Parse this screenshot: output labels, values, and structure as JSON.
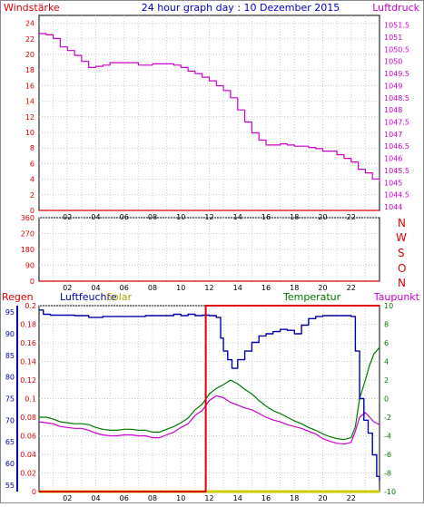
{
  "title": "24 hour graph day : 10 Dezember 2015",
  "colors": {
    "wind": "#dd0000",
    "pressure": "#cc00cc",
    "direction": "#dd0000",
    "rain": "#dd0000",
    "humidity": "#0000aa",
    "solar": "#cccc00",
    "temperature": "#007700",
    "dewpoint": "#cc00cc",
    "grid": "#cccccc",
    "frame": "#000000"
  },
  "panel_top": {
    "left_label": "Windstärke",
    "right_label": "Luftdruck"
  },
  "panel_mid": {
    "direction_letters": [
      "N",
      "W",
      "S",
      "O",
      "N"
    ]
  },
  "panel_bottom": {
    "rain_label": "Regen",
    "humidity_label": "Luftfeuchte",
    "solar_label": "Solar",
    "temperature_label": "Temperatur",
    "dewpoint_label": "Taupunkt"
  },
  "chart_data": [
    {
      "type": "line",
      "x_ticks": [
        "02",
        "04",
        "06",
        "08",
        "10",
        "12",
        "14",
        "16",
        "18",
        "20",
        "22"
      ],
      "xlim": [
        0,
        24
      ],
      "grid": true,
      "y_left": {
        "label": "Windstärke",
        "ticks": [
          "0",
          "2",
          "4",
          "6",
          "8",
          "10",
          "12",
          "14",
          "16",
          "18",
          "20",
          "22",
          "24"
        ],
        "ylim": [
          0,
          25
        ]
      },
      "y_right": {
        "label": "Luftdruck",
        "ticks": [
          "1044",
          "1044.5",
          "1045",
          "1045.5",
          "1046",
          "1046.5",
          "1047",
          "1047.5",
          "1048",
          "1048.5",
          "1049",
          "1049.5",
          "1050",
          "1050.5",
          "1051",
          "1051.5"
        ],
        "ylim": [
          1043.85,
          1051.9
        ]
      },
      "series": [
        {
          "name": "Windstärke",
          "axis": "left",
          "x": [
            0,
            24
          ],
          "values": [
            0,
            0
          ]
        },
        {
          "name": "Luftdruck",
          "axis": "right",
          "x": [
            0,
            0.5,
            1,
            1.5,
            2,
            2.5,
            3,
            3.5,
            4,
            4.5,
            5,
            5.5,
            6,
            6.5,
            7,
            7.5,
            8,
            8.5,
            9,
            9.5,
            10,
            10.5,
            11,
            11.5,
            12,
            12.5,
            13,
            13.5,
            14,
            14.5,
            15,
            15.5,
            16,
            16.5,
            17,
            17.5,
            18,
            18.5,
            19,
            19.5,
            20,
            20.5,
            21,
            21.5,
            22,
            22.5,
            23,
            23.5,
            24
          ],
          "values": [
            1051.15,
            1051.1,
            1050.95,
            1050.6,
            1050.45,
            1050.25,
            1050.0,
            1049.75,
            1049.8,
            1049.85,
            1049.95,
            1049.95,
            1049.95,
            1049.95,
            1049.85,
            1049.85,
            1049.9,
            1049.9,
            1049.9,
            1049.85,
            1049.75,
            1049.6,
            1049.5,
            1049.35,
            1049.2,
            1049.0,
            1048.8,
            1048.5,
            1048.0,
            1047.5,
            1047.05,
            1046.75,
            1046.55,
            1046.55,
            1046.6,
            1046.55,
            1046.5,
            1046.5,
            1046.45,
            1046.4,
            1046.3,
            1046.3,
            1046.15,
            1046.0,
            1045.85,
            1045.55,
            1045.4,
            1045.15,
            1045.0
          ]
        }
      ]
    },
    {
      "type": "line",
      "x_ticks": [
        "02",
        "04",
        "06",
        "08",
        "10",
        "12",
        "14",
        "16",
        "18",
        "20",
        "22"
      ],
      "xlim": [
        0,
        24
      ],
      "grid": true,
      "y_left": {
        "ticks": [
          "0",
          "90",
          "180",
          "270",
          "360"
        ],
        "ylim": [
          0,
          360
        ]
      },
      "series": [
        {
          "name": "Windrichtung",
          "axis": "left",
          "x": [
            0,
            24
          ],
          "values": [
            0,
            0
          ]
        }
      ]
    },
    {
      "type": "line",
      "x_ticks": [
        "02",
        "04",
        "06",
        "08",
        "10",
        "12",
        "14",
        "16",
        "18",
        "20",
        "22"
      ],
      "xlim": [
        0,
        24
      ],
      "grid": true,
      "y_rain": {
        "label": "Regen",
        "ticks": [
          "0",
          "0.02",
          "0.04",
          "0.06",
          "0.08",
          "0.1",
          "0.12",
          "0.14",
          "0.16",
          "0.18",
          "0.2"
        ],
        "ylim": [
          0,
          0.2
        ]
      },
      "y_humidity": {
        "label": "Luftfeuchte",
        "ticks": [
          "55",
          "60",
          "65",
          "70",
          "75",
          "80",
          "85",
          "90",
          "95"
        ],
        "ylim": [
          53.5,
          96.5
        ]
      },
      "y_temperature": {
        "label": "Temperatur",
        "ticks": [
          "-10",
          "-8",
          "-6",
          "-4",
          "-2",
          "0",
          "2",
          "4",
          "6",
          "8",
          "10"
        ],
        "ylim": [
          -10,
          10
        ]
      },
      "series": [
        {
          "name": "Regen",
          "axis": "rain",
          "x": [
            0,
            11.75,
            11.75,
            24
          ],
          "values": [
            0,
            0,
            0.2,
            0.2
          ]
        },
        {
          "name": "Solar",
          "axis": "rain",
          "x": [
            0,
            24
          ],
          "values": [
            0,
            0
          ]
        },
        {
          "name": "Luftfeuchte",
          "axis": "humidity",
          "x": [
            0,
            0.3,
            0.8,
            1.5,
            2.5,
            3.5,
            4.5,
            5.5,
            6.5,
            7.5,
            8.5,
            9.5,
            10.0,
            10.5,
            11.0,
            11.5,
            12.0,
            12.5,
            12.8,
            13.0,
            13.3,
            13.6,
            14.0,
            14.5,
            15.0,
            15.5,
            16.0,
            16.5,
            17.0,
            17.5,
            18.0,
            18.5,
            19.0,
            19.5,
            20.0,
            20.5,
            21.0,
            21.5,
            22.0,
            22.3,
            22.6,
            22.9,
            23.2,
            23.5,
            23.8,
            24.0
          ],
          "values": [
            95.5,
            94.5,
            94.3,
            94.3,
            94.2,
            93.8,
            94.0,
            94.0,
            94.0,
            94.2,
            94.2,
            94.5,
            94.2,
            94.5,
            94.2,
            94.3,
            94.2,
            93.8,
            89.0,
            86.0,
            84.0,
            82.0,
            84.0,
            86.0,
            88.0,
            89.5,
            90.0,
            90.5,
            91.0,
            90.8,
            90.0,
            92.0,
            93.5,
            94.0,
            94.2,
            94.2,
            94.2,
            94.2,
            94.0,
            86.0,
            75.0,
            70.0,
            67.0,
            62.0,
            57.0,
            56.0
          ]
        },
        {
          "name": "Temperatur",
          "axis": "temperature",
          "x": [
            0,
            0.5,
            1.0,
            1.5,
            2.0,
            2.5,
            3.0,
            3.5,
            4.0,
            4.5,
            5.0,
            5.5,
            6.0,
            6.5,
            7.0,
            7.5,
            8.0,
            8.5,
            9.0,
            9.5,
            10.0,
            10.5,
            11.0,
            11.5,
            12.0,
            12.5,
            13.0,
            13.5,
            14.0,
            14.5,
            15.0,
            15.5,
            16.0,
            16.5,
            17.0,
            17.5,
            18.0,
            18.5,
            19.0,
            19.5,
            20.0,
            20.5,
            21.0,
            21.5,
            22.0,
            22.3,
            22.6,
            23.0,
            23.3,
            23.6,
            24.0
          ],
          "values": [
            -2.0,
            -2.0,
            -2.2,
            -2.5,
            -2.6,
            -2.7,
            -2.7,
            -2.8,
            -3.1,
            -3.3,
            -3.4,
            -3.4,
            -3.3,
            -3.3,
            -3.4,
            -3.4,
            -3.6,
            -3.6,
            -3.3,
            -3.0,
            -2.6,
            -2.1,
            -1.2,
            -0.6,
            0.5,
            1.1,
            1.5,
            2.0,
            1.6,
            1.0,
            0.5,
            -0.2,
            -0.8,
            -1.3,
            -1.6,
            -2.0,
            -2.4,
            -2.7,
            -3.1,
            -3.4,
            -3.8,
            -4.1,
            -4.3,
            -4.4,
            -4.2,
            -3.0,
            0.0,
            2.0,
            3.6,
            4.8,
            5.5
          ]
        },
        {
          "name": "Taupunkt",
          "axis": "temperature",
          "x": [
            0,
            0.5,
            1.0,
            1.5,
            2.0,
            2.5,
            3.0,
            3.5,
            4.0,
            4.5,
            5.0,
            5.5,
            6.0,
            6.5,
            7.0,
            7.5,
            8.0,
            8.5,
            9.0,
            9.5,
            10.0,
            10.5,
            11.0,
            11.5,
            12.0,
            12.5,
            13.0,
            13.5,
            14.0,
            14.5,
            15.0,
            15.5,
            16.0,
            16.5,
            17.0,
            17.5,
            18.0,
            18.5,
            19.0,
            19.5,
            20.0,
            20.5,
            21.0,
            21.5,
            22.0,
            22.3,
            22.6,
            23.0,
            23.3,
            23.6,
            24.0
          ],
          "values": [
            -2.5,
            -2.6,
            -2.7,
            -3.0,
            -3.1,
            -3.2,
            -3.2,
            -3.4,
            -3.7,
            -3.9,
            -4.0,
            -4.0,
            -3.9,
            -3.9,
            -4.0,
            -4.0,
            -4.2,
            -4.2,
            -3.9,
            -3.6,
            -3.1,
            -2.7,
            -1.8,
            -1.3,
            -0.2,
            0.3,
            0.1,
            -0.4,
            -0.7,
            -1.0,
            -1.2,
            -1.6,
            -2.0,
            -2.3,
            -2.5,
            -2.8,
            -3.0,
            -3.2,
            -3.5,
            -3.8,
            -4.3,
            -4.6,
            -4.8,
            -4.9,
            -4.7,
            -3.5,
            -2.0,
            -1.5,
            -2.0,
            -2.5,
            -2.8
          ]
        }
      ]
    }
  ]
}
